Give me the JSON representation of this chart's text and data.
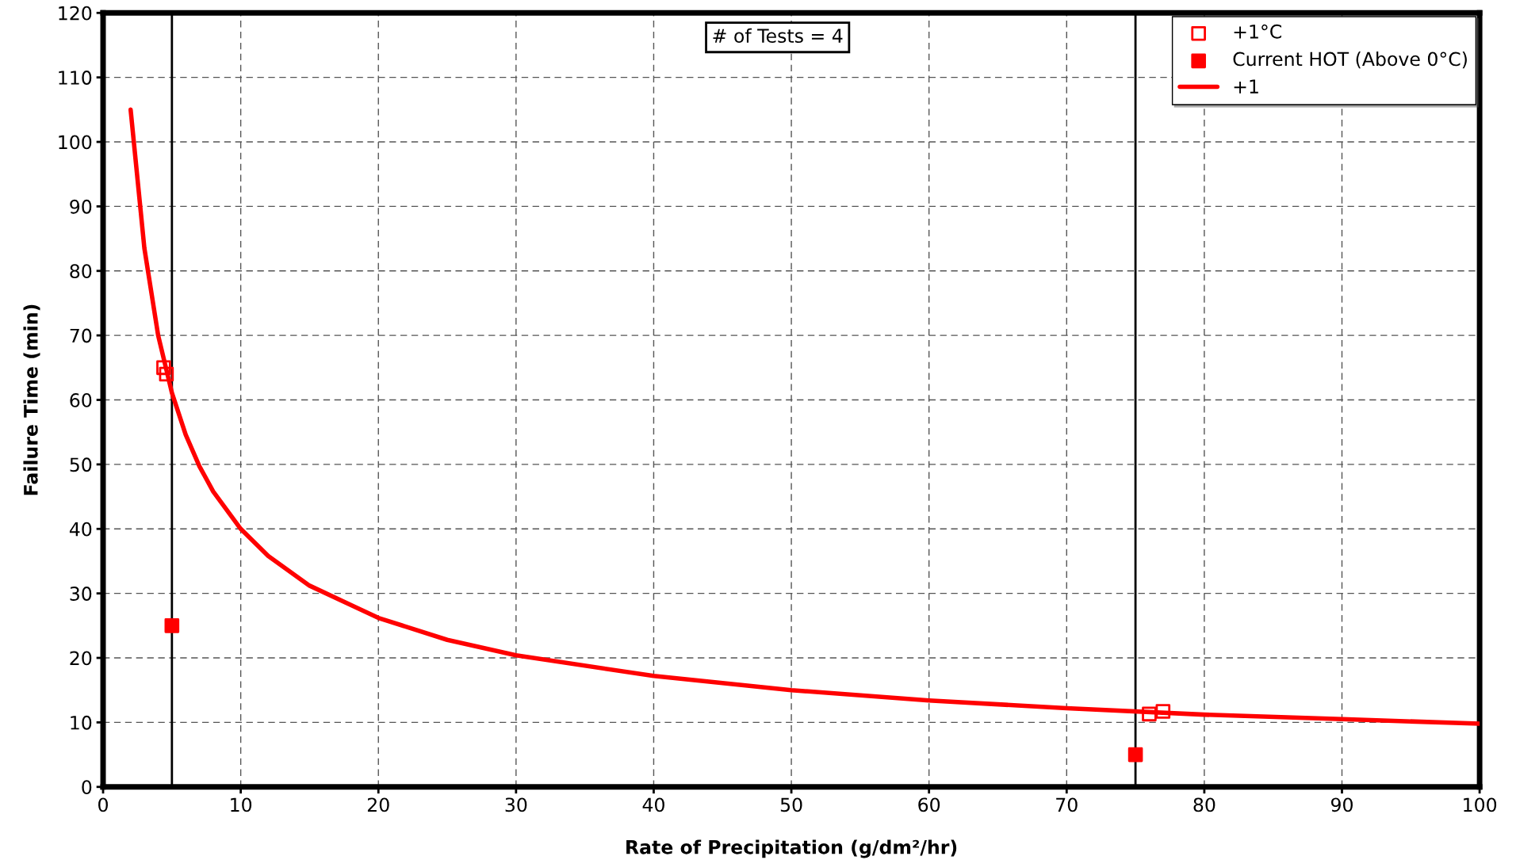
{
  "chart_data": {
    "type": "scatter",
    "xlabel": "Rate of Precipitation (g/dm²/hr)",
    "ylabel": "Failure Time (min)",
    "xlim": [
      0,
      100
    ],
    "xticks": [
      0,
      10,
      20,
      30,
      40,
      50,
      60,
      70,
      80,
      90,
      100
    ],
    "ylim": [
      0,
      120
    ],
    "yticks": [
      0,
      10,
      20,
      30,
      40,
      50,
      60,
      70,
      80,
      90,
      100,
      110,
      120
    ],
    "grid": true,
    "legend": "top right",
    "annotations": [
      "# of Tests = 4"
    ],
    "ref_lines": [
      {
        "axis": "x",
        "value": 5,
        "label": null,
        "color": "#000000",
        "line_style": "solid"
      },
      {
        "axis": "x",
        "value": 75,
        "label": null,
        "color": "#000000",
        "line_style": "solid"
      }
    ],
    "series": [
      {
        "name": "+1°C",
        "marker": "square",
        "color": "#ff0000",
        "x": [
          4.4,
          4.6,
          76,
          77
        ],
        "values": [
          65,
          64,
          11.3,
          11.7
        ]
      },
      {
        "name": "Current HOT (Above 0°C)",
        "marker": "square",
        "color": "#ff0000",
        "x": [
          5,
          75
        ],
        "values": [
          25,
          5
        ]
      },
      {
        "name": "+1",
        "type": "line",
        "marker": "none",
        "line_style": "solid",
        "color": "#ff0000",
        "x": [
          2,
          3,
          4,
          5,
          6,
          7,
          8,
          10,
          12,
          15,
          20,
          25,
          30,
          40,
          50,
          60,
          70,
          80,
          90,
          100
        ],
        "values": [
          105,
          83.5,
          70,
          61.1,
          54.6,
          49.7,
          45.8,
          40,
          35.8,
          31.2,
          26.2,
          22.8,
          20.4,
          17.2,
          15,
          13.4,
          12.2,
          11.2,
          10.5,
          9.8
        ]
      }
    ]
  }
}
